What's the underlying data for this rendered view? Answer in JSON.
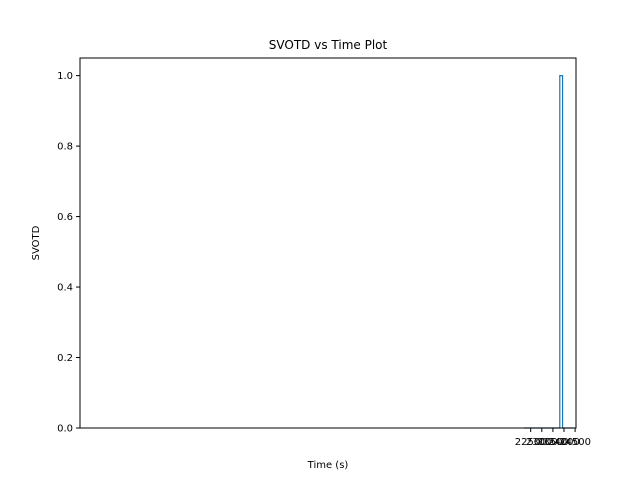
{
  "chart_data": {
    "type": "line",
    "title": "SVOTD vs Time Plot",
    "xlabel": "Time (s)",
    "ylabel": "SVOTD",
    "xlim": [
      2206,
      24540
    ],
    "ylim": [
      0.0,
      1.05
    ],
    "xticks": [
      22500,
      23000,
      23500,
      24000,
      24500
    ],
    "yticks": [
      0.0,
      0.2,
      0.4,
      0.6,
      0.8,
      1.0
    ],
    "xtick_labels": [
      "22500",
      "23000",
      "23500",
      "24000",
      "24500"
    ],
    "ytick_labels": [
      "0.0",
      "0.2",
      "0.4",
      "0.6",
      "0.8",
      "1.0"
    ],
    "grid": false,
    "series": [
      {
        "color": "#1f77b4",
        "x": [
          22190,
          23810,
          23810,
          23935,
          23935,
          24430
        ],
        "y": [
          0,
          0,
          1,
          1,
          0,
          0
        ]
      }
    ]
  }
}
